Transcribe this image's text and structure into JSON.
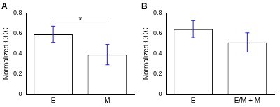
{
  "chart_data": [
    {
      "type": "bar",
      "title": "A",
      "y_label": "Normalized CCC",
      "categories": [
        "E",
        "M"
      ],
      "values": [
        0.59,
        0.39
      ],
      "errors": [
        0.08,
        0.1
      ],
      "color": "#ffffff",
      "ylim": [
        0,
        0.8
      ],
      "yticks": [
        0,
        0.2,
        0.4,
        0.6,
        0.8
      ],
      "grid": false,
      "annotation": {
        "text": "*",
        "from": "E",
        "to": "M",
        "y": 0.71
      }
    },
    {
      "type": "bar",
      "title": "B",
      "y_label": "Normalized CCC",
      "categories": [
        "E",
        "E/M + M"
      ],
      "values": [
        0.64,
        0.51
      ],
      "errors": [
        0.085,
        0.095
      ],
      "color": "#ffffff",
      "ylim": [
        0,
        0.8
      ],
      "yticks": [
        0,
        0.2,
        0.4,
        0.6,
        0.8
      ],
      "grid": false
    }
  ]
}
